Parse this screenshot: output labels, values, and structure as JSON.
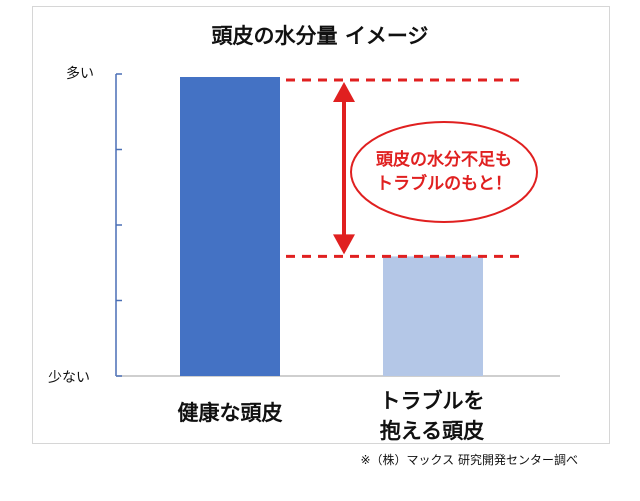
{
  "chart_data": {
    "type": "bar",
    "title": "頭皮の水分量 イメージ",
    "categories": [
      "健康な頭皮",
      "トラブルを\n抱える頭皮"
    ],
    "values": [
      100,
      40
    ],
    "ylim": [
      0,
      100
    ],
    "y_tick_labels": {
      "top": "多い",
      "bottom": "少ない"
    },
    "xlabel": "",
    "ylabel": "",
    "grid": false,
    "colors": [
      "#4472c4",
      "#b4c7e7"
    ],
    "annotation": "頭皮の水分不足も\nトラブルのもと！",
    "annotation_color": "#e02020",
    "footnote": "※（株）マックス 研究開発センター調べ"
  }
}
